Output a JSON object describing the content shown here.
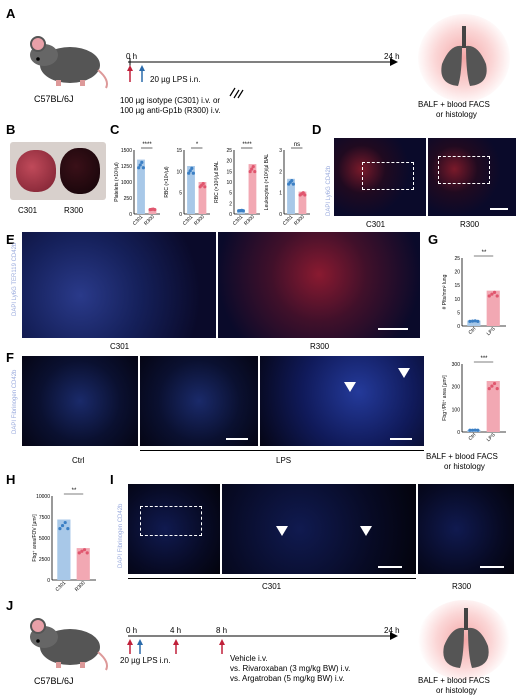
{
  "panels": {
    "A": {
      "label": "A",
      "strain": "C57BL/6J",
      "t0": "0 h",
      "t24": "24 h",
      "lps": "20 µg LPS i.n.",
      "iso1": "100 µg isotype (C301) i.v. or",
      "iso2": "100 µg anti-Gp1b (R300) i.v.",
      "out1": "BALF + blood FACS",
      "out2": "or histology"
    },
    "B": {
      "label": "B",
      "c": "C301",
      "r": "R300"
    },
    "C": {
      "label": "C",
      "charts": [
        {
          "ylabel": "Platelets (×10³/µl)",
          "sig": "****",
          "ticks": [
            "0",
            "250",
            "1000",
            "1250",
            "1500"
          ]
        },
        {
          "ylabel": "RBC (×10⁶/µl)",
          "sig": "*",
          "ticks": [
            "0",
            "5",
            "10",
            "15"
          ]
        },
        {
          "ylabel": "RBC (×10³)/µl BAL",
          "sig": "****",
          "ticks": [
            "0",
            "2",
            "5",
            "10",
            "15",
            "20",
            "25"
          ]
        },
        {
          "ylabel": "Leukocytes (×10³)/µl BAL",
          "sig": "ns",
          "ticks": [
            "0",
            "1",
            "2",
            "3"
          ]
        }
      ],
      "xcats": [
        "C301",
        "R300"
      ]
    },
    "D": {
      "label": "D",
      "c": "C301",
      "r": "R300",
      "stain": "DAPI Ly6G CD42b"
    },
    "E": {
      "label": "E",
      "c": "C301",
      "r": "R300",
      "stain": "DAPI Ly6G TER119 CD42b"
    },
    "F": {
      "label": "F",
      "ctrl": "Ctrl",
      "lps": "LPS",
      "stain": "DAPI Fibrinogen CD42b"
    },
    "G": {
      "label": "G",
      "ylabel": "# Plts/mm² lung",
      "ylabel2": "Fbg⁺/Plt⁺ area [µm²]",
      "sig": "**",
      "sig2": "***",
      "cats": [
        "Ctrl",
        "LPS"
      ],
      "ticks": [
        "0",
        "5",
        "10",
        "15",
        "20",
        "25"
      ],
      "ticks2": [
        "0",
        "100",
        "200",
        "300"
      ]
    },
    "H": {
      "label": "H",
      "ylabel": "Fbg⁺ area/FOV [µm²]",
      "sig": "**",
      "cats": [
        "C301",
        "R300"
      ],
      "ticks": [
        "0",
        "2500",
        "5000",
        "7500",
        "10000"
      ]
    },
    "I": {
      "label": "I",
      "c": "C301",
      "r": "R300",
      "stain": "DAPI Fibrinogen CD42b"
    },
    "J": {
      "label": "J",
      "strain": "C57BL/6J",
      "t0": "0 h",
      "t4": "4 h",
      "t8": "8 h",
      "t24": "24 h",
      "lps": "20 µg LPS i.n.",
      "v1": "Vehicle i.v.",
      "v2": "vs. Rivaroxaban (3 mg/kg BW) i.v.",
      "v3": "vs. Argatroban (5 mg/kg BW) i.v.",
      "out1": "BALF + blood FACS",
      "out2": "or histology"
    }
  },
  "fbalf": "BALF + blood FACS",
  "fhist": "or histology",
  "colors": {
    "blue": "#3b7fc4",
    "red": "#e0566e",
    "pink": "#f2a8b3",
    "lightblue": "#a8c8e8"
  }
}
